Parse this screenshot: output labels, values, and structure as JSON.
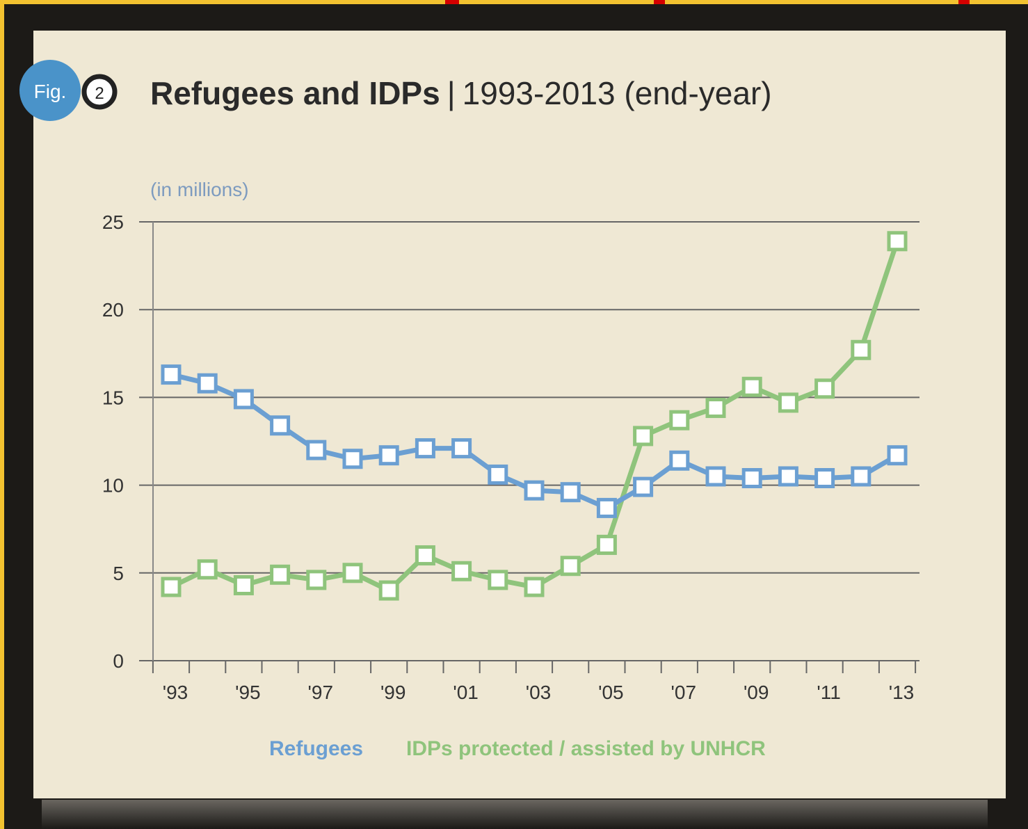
{
  "figure": {
    "badge_text": "Fig.",
    "badge_number": "2",
    "title_bold": "Refugees and IDPs",
    "title_separator": "|",
    "title_light": "1993-2013 (end-year)"
  },
  "colors": {
    "badge_blue": "#4a93c9",
    "refugees": "#6b9fd2",
    "idps": "#8fc47c",
    "grid": "#666666",
    "panel": "#efe8d4"
  },
  "chart_data": {
    "type": "line",
    "unit_label": "(in millions)",
    "ylim": [
      0,
      25
    ],
    "y_ticks": [
      "0",
      "5",
      "10",
      "15",
      "20",
      "25"
    ],
    "x_ticks": [
      "'93",
      "'95",
      "'97",
      "'99",
      "'01",
      "'03",
      "'05",
      "'07",
      "'09",
      "'11",
      "'13"
    ],
    "x": [
      1993,
      1994,
      1995,
      1996,
      1997,
      1998,
      1999,
      2000,
      2001,
      2002,
      2003,
      2004,
      2005,
      2006,
      2007,
      2008,
      2009,
      2010,
      2011,
      2012,
      2013
    ],
    "series": [
      {
        "name": "Refugees",
        "color": "#6b9fd2",
        "values": [
          16.3,
          15.8,
          14.9,
          13.4,
          12.0,
          11.5,
          11.7,
          12.1,
          12.1,
          10.6,
          9.7,
          9.6,
          8.7,
          9.9,
          11.4,
          10.5,
          10.4,
          10.5,
          10.4,
          10.5,
          11.7
        ]
      },
      {
        "name": "IDPs protected / assisted by UNHCR",
        "color": "#8fc47c",
        "values": [
          4.2,
          5.2,
          4.3,
          4.9,
          4.6,
          5.0,
          4.0,
          6.0,
          5.1,
          4.6,
          4.2,
          5.4,
          6.6,
          12.8,
          13.7,
          14.4,
          15.6,
          14.7,
          15.5,
          17.7,
          23.9
        ]
      }
    ],
    "legend": [
      "Refugees",
      "IDPs protected / assisted by UNHCR"
    ]
  }
}
